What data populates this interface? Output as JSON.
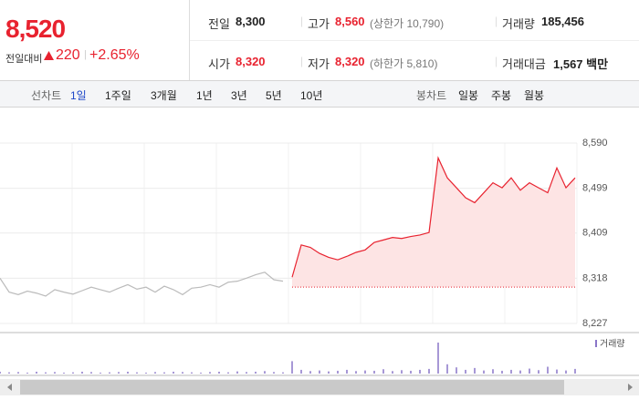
{
  "header": {
    "price": "8,520",
    "change_label": "전일대비",
    "change": "220",
    "change_rate": "+2.65%"
  },
  "quote": [
    {
      "label": "전일",
      "value": "8,300"
    },
    {
      "label": "고가",
      "value": "8,560",
      "note": "(상한가 10,790)"
    },
    {
      "label": "거래량",
      "value": "185,456"
    },
    {
      "label": "시가",
      "value": "8,320"
    },
    {
      "label": "저가",
      "value": "8,320",
      "note": "(하한가 5,810)"
    },
    {
      "label": "거래대금",
      "value": "1,567 백만"
    }
  ],
  "toolbar": {
    "line_label": "선차트",
    "line_periods": [
      "1일",
      "1주일",
      "3개월",
      "1년",
      "3년",
      "5년",
      "10년"
    ],
    "line_selected": 0,
    "candle_label": "봉차트",
    "candle_periods": [
      "일봉",
      "주봉",
      "월봉"
    ]
  },
  "chart_data": {
    "type": "line",
    "x": [
      0,
      1,
      2,
      3,
      4,
      5,
      6,
      7,
      8,
      9,
      10,
      11,
      12,
      13,
      14,
      15,
      16,
      17,
      18,
      19,
      20,
      21,
      22,
      23,
      24,
      25,
      26,
      27,
      28,
      29,
      30,
      31,
      32,
      33,
      34,
      35,
      36,
      37,
      38,
      39,
      40,
      41,
      42,
      43,
      44,
      45,
      46,
      47,
      48,
      49,
      50,
      51,
      52,
      53,
      54,
      55,
      56,
      57,
      58,
      59,
      60,
      61,
      62,
      63
    ],
    "xlim": [
      0,
      63
    ],
    "ylim": [
      8227,
      8590
    ],
    "yticks": [
      {
        "value": 8590,
        "label": "8,590"
      },
      {
        "value": 8499,
        "label": "8,499"
      },
      {
        "value": 8409,
        "label": "8,409"
      },
      {
        "value": 8318,
        "label": "8,318"
      },
      {
        "value": 8227,
        "label": "8,227"
      }
    ],
    "baseline": 8300,
    "series": [
      {
        "color": "#bbbbbb",
        "values": [
          8318,
          8290,
          8285,
          8292,
          8288,
          8282,
          8295,
          8290,
          8286,
          8293,
          8300,
          8295,
          8290,
          8298,
          8305,
          8296,
          8300,
          8290,
          8302,
          8295,
          8285,
          8298,
          8300,
          8305,
          8300,
          8310,
          8312,
          8318,
          8325,
          8330,
          8315,
          8312,
          null,
          null,
          null,
          null,
          null,
          null,
          null,
          null,
          null,
          null,
          null,
          null,
          null,
          null,
          null,
          null,
          null,
          null,
          null,
          null,
          null,
          null,
          null,
          null,
          null,
          null,
          null,
          null,
          null,
          null,
          null,
          null
        ]
      },
      {
        "color": "#e8222f",
        "area_color": "#fde4e4",
        "values": [
          null,
          null,
          null,
          null,
          null,
          null,
          null,
          null,
          null,
          null,
          null,
          null,
          null,
          null,
          null,
          null,
          null,
          null,
          null,
          null,
          null,
          null,
          null,
          null,
          null,
          null,
          null,
          null,
          null,
          null,
          null,
          null,
          8320,
          8385,
          8380,
          8368,
          8360,
          8355,
          8362,
          8370,
          8375,
          8390,
          8395,
          8400,
          8398,
          8402,
          8405,
          8410,
          8560,
          8520,
          8500,
          8480,
          8470,
          8490,
          8510,
          8500,
          8520,
          8495,
          8510,
          8500,
          8490,
          8540,
          8500,
          8520
        ]
      },
      {
        "name": "거래량",
        "color": "#8a76c8",
        "axis": "y2",
        "values": [
          6,
          4,
          5,
          3,
          6,
          4,
          5,
          3,
          4,
          6,
          5,
          3,
          4,
          5,
          6,
          4,
          3,
          5,
          4,
          6,
          5,
          4,
          3,
          5,
          6,
          4,
          7,
          5,
          6,
          8,
          5,
          4,
          40,
          12,
          8,
          10,
          7,
          9,
          12,
          8,
          10,
          9,
          14,
          8,
          11,
          9,
          12,
          15,
          100,
          30,
          20,
          12,
          18,
          10,
          14,
          9,
          12,
          10,
          16,
          11,
          22,
          13,
          10,
          15
        ]
      }
    ],
    "y2lim": [
      0,
      100
    ]
  }
}
